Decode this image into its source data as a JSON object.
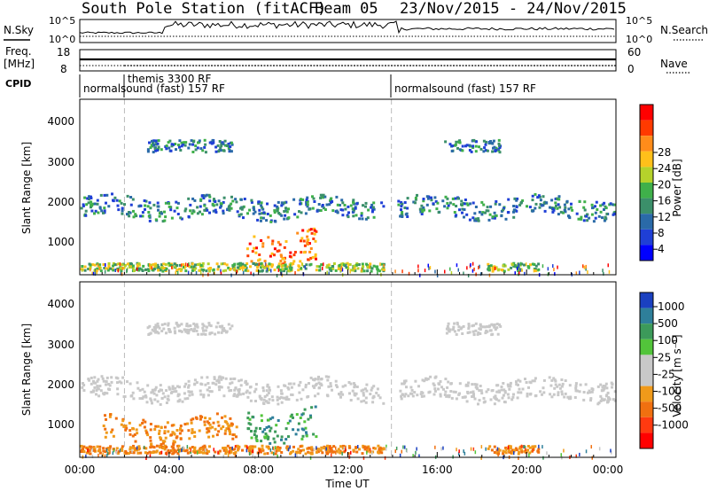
{
  "header": {
    "title": "South Pole Station (fitACF)",
    "beam": "Beam 05",
    "dates": "23/Nov/2015 - 24/Nov/2015"
  },
  "labels": {
    "nsky": "N.Sky",
    "nsearch": "N.Search",
    "freq": "Freq.",
    "freq_unit": "[MHz]",
    "nave": "Nave",
    "cpid": "CPID",
    "power_ylabel": "Slant Range [km]",
    "velocity_ylabel": "Slant Range [km]",
    "xlabel": "Time UT",
    "power_bar": "Power [dB]",
    "velocity_bar": "Velocity [m s⁻¹]"
  },
  "noise_panel": {
    "left_ticks": [
      "10^5",
      "10^0"
    ],
    "right_ticks": [
      "10^5",
      "10^0"
    ]
  },
  "freq_panel": {
    "left_ticks": [
      "18",
      "8"
    ],
    "right_ticks": [
      "60",
      "0"
    ]
  },
  "cpid_panel": {
    "segments": [
      {
        "label": "normalsound (fast) 157 RF",
        "start_hour": 0
      },
      {
        "label": "themis 3300 RF",
        "start_hour": 2
      },
      {
        "label": "normalsound (fast) 157 RF",
        "start_hour": 14
      }
    ]
  },
  "colorbars": {
    "power": {
      "ticks": [
        "28",
        "24",
        "20",
        "16",
        "12",
        "8",
        "4"
      ],
      "colors": [
        "#ff0000",
        "#ff3a00",
        "#ff8c1a",
        "#ffc01a",
        "#b5d22b",
        "#3fb04a",
        "#3b8f6a",
        "#2a6aa8",
        "#1f3fd6",
        "#0000ff"
      ]
    },
    "velocity": {
      "ticks": [
        "1000",
        "500",
        "100",
        "25",
        "-25",
        "-100",
        "-500",
        "-1000"
      ],
      "colors": [
        "#1a40c0",
        "#2e7f9a",
        "#3c9a5a",
        "#52c43a",
        "#c8c8c8",
        "#c8c8c8",
        "#f09a1a",
        "#f07010",
        "#ff3a10",
        "#ff0000"
      ]
    }
  },
  "chart_data": [
    {
      "type": "heatmap",
      "name": "power",
      "ylabel": "Slant Range [km]",
      "ylim": [
        180,
        4600
      ],
      "x_range_hours": [
        0,
        24
      ],
      "xticks": [
        "00:00",
        "04:00",
        "08:00",
        "12:00",
        "16:00",
        "20:00",
        "00:00"
      ],
      "yticks": [
        "1000",
        "2000",
        "3000",
        "4000"
      ],
      "colorbar": "Power [dB]",
      "bands": [
        {
          "range_km": [
            1650,
            2150
          ],
          "hours": [
            0,
            13.6
          ],
          "level": "low"
        },
        {
          "range_km": [
            1650,
            2150
          ],
          "hours": [
            14.2,
            24
          ],
          "level": "low"
        },
        {
          "range_km": [
            3300,
            3600
          ],
          "hours": [
            3,
            6.8
          ],
          "level": "low"
        },
        {
          "range_km": [
            3300,
            3600
          ],
          "hours": [
            16.3,
            18.8
          ],
          "level": "low"
        },
        {
          "range_km": [
            500,
            1300
          ],
          "hours": [
            7.4,
            10.6
          ],
          "level": "high"
        },
        {
          "range_km": [
            300,
            500
          ],
          "hours": [
            0,
            13.6
          ],
          "level": "medium"
        },
        {
          "range_km": [
            300,
            500
          ],
          "hours": [
            18.2,
            20.5
          ],
          "level": "medium"
        }
      ]
    },
    {
      "type": "heatmap",
      "name": "velocity",
      "ylabel": "Slant Range [km]",
      "ylim": [
        180,
        4600
      ],
      "x_range_hours": [
        0,
        24
      ],
      "xticks": [
        "00:00",
        "04:00",
        "08:00",
        "12:00",
        "16:00",
        "20:00",
        "00:00"
      ],
      "yticks": [
        "1000",
        "2000",
        "3000",
        "4000"
      ],
      "colorbar": "Velocity [m s⁻¹]",
      "bands": [
        {
          "range_km": [
            1650,
            2150
          ],
          "hours": [
            0,
            13.6
          ],
          "level": "near-zero"
        },
        {
          "range_km": [
            1650,
            2150
          ],
          "hours": [
            14.2,
            24
          ],
          "level": "near-zero"
        },
        {
          "range_km": [
            3300,
            3600
          ],
          "hours": [
            3,
            6.8
          ],
          "level": "near-zero"
        },
        {
          "range_km": [
            3300,
            3600
          ],
          "hours": [
            16.3,
            18.8
          ],
          "level": "near-zero"
        },
        {
          "range_km": [
            600,
            1400
          ],
          "hours": [
            7.4,
            10.6
          ],
          "level": "positive"
        },
        {
          "range_km": [
            600,
            1200
          ],
          "hours": [
            1,
            7
          ],
          "level": "negative"
        },
        {
          "range_km": [
            300,
            500
          ],
          "hours": [
            0,
            13.6
          ],
          "level": "negative"
        },
        {
          "range_km": [
            300,
            500
          ],
          "hours": [
            18.2,
            20.5
          ],
          "level": "negative"
        }
      ]
    }
  ]
}
